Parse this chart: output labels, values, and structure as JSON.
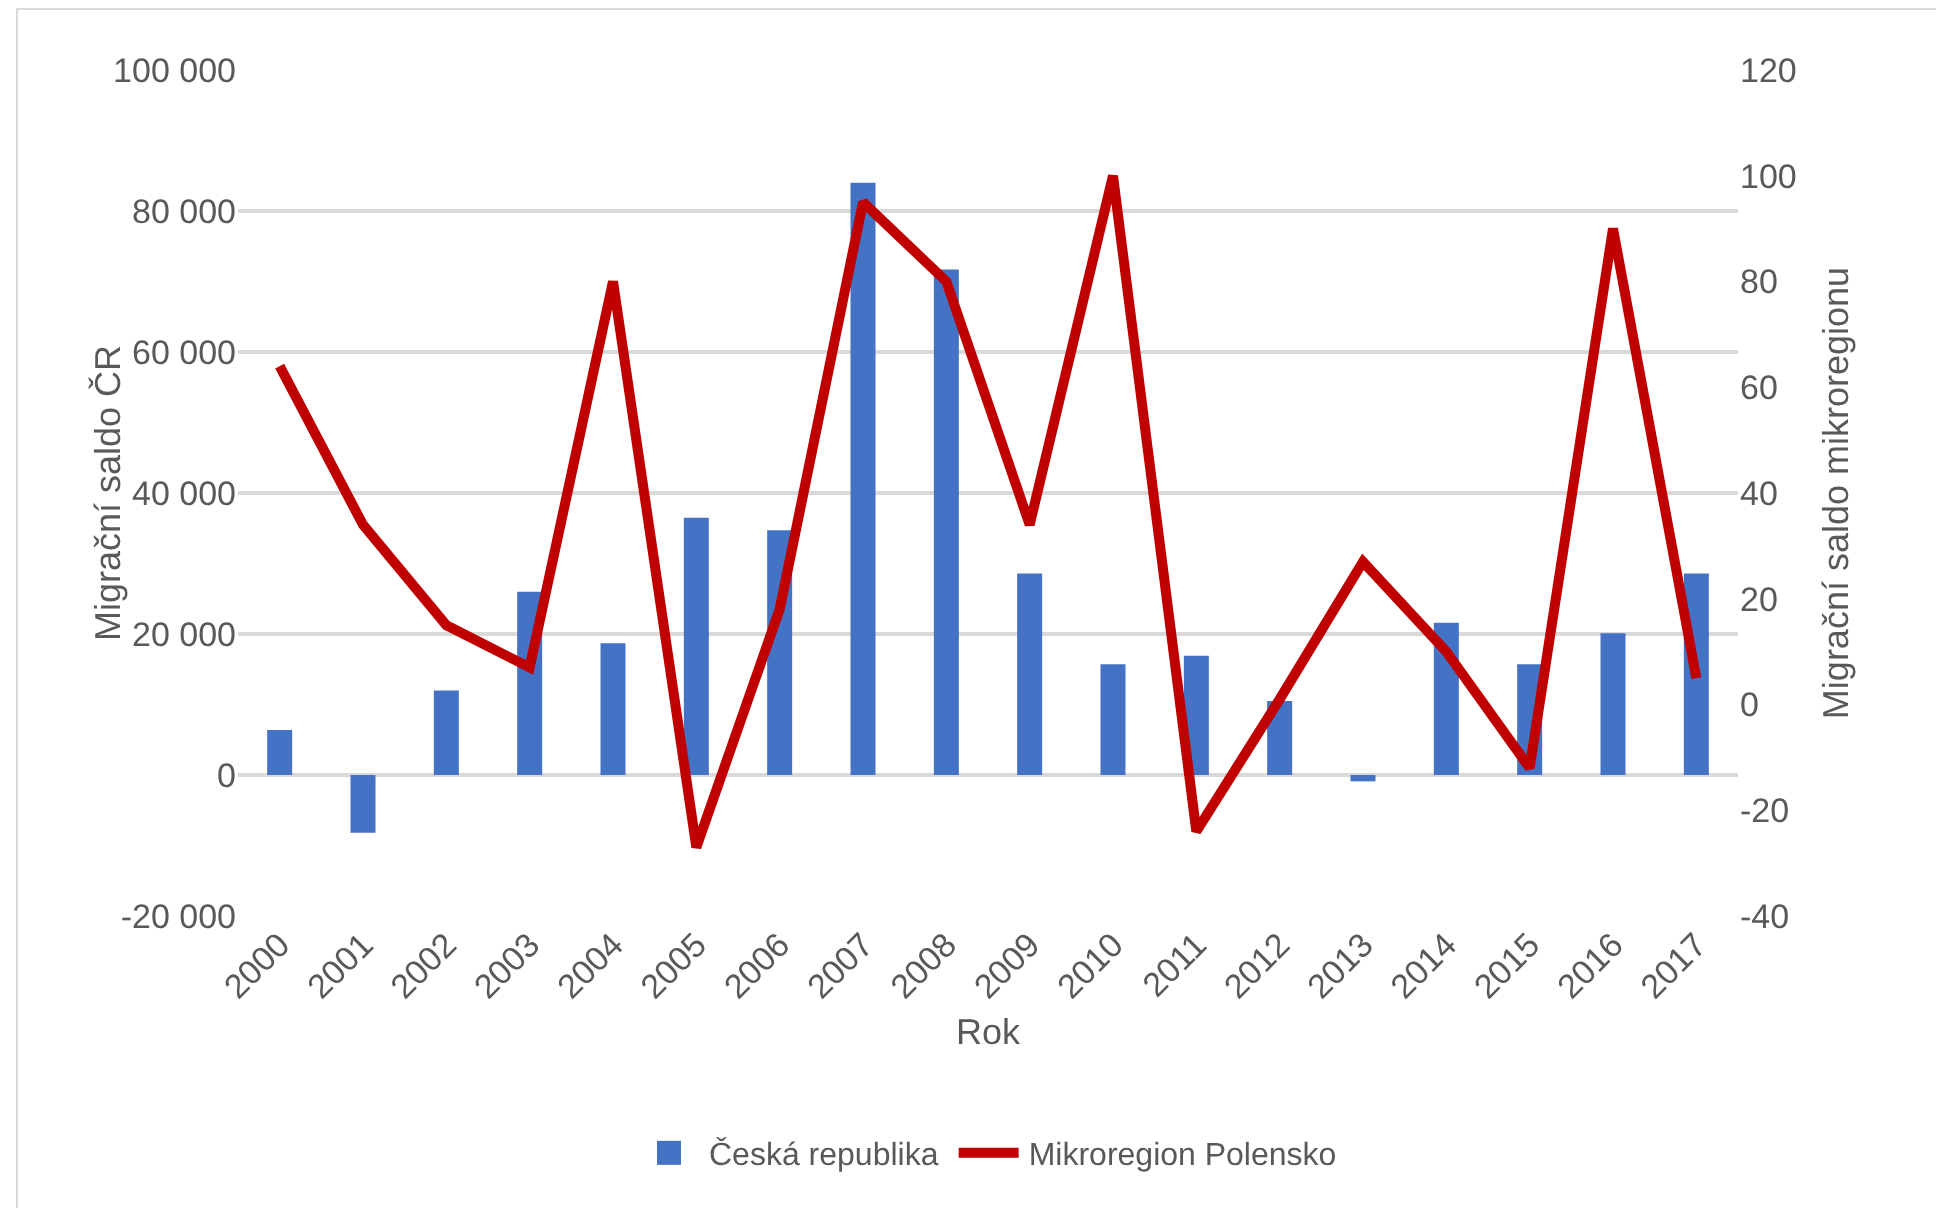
{
  "chart_data": {
    "type": "bar",
    "xlabel": "Rok",
    "ylabel": "Migrační saldo ČR",
    "y2label": "Migrační saldo mikroregionu",
    "categories": [
      "2000",
      "2001",
      "2002",
      "2003",
      "2004",
      "2005",
      "2006",
      "2007",
      "2008",
      "2009",
      "2010",
      "2011",
      "2012",
      "2013",
      "2014",
      "2015",
      "2016",
      "2017"
    ],
    "series": [
      {
        "name": "Česká republika",
        "color": "#4472c4",
        "values": [
          6400,
          -8200,
          12000,
          26000,
          18700,
          36500,
          34700,
          84000,
          71700,
          28600,
          15700,
          16900,
          10500,
          -900,
          21600,
          15700,
          20100,
          28600
        ]
      },
      {
        "name": "Mikroregion Polensko",
        "type": "line",
        "axis": "y2",
        "color": "#c00000",
        "values": [
          64,
          34,
          15,
          7,
          80,
          -27,
          18,
          95,
          80,
          34,
          100,
          -24,
          1,
          27,
          10,
          -12,
          90,
          5
        ]
      }
    ],
    "ylim": [
      -20000,
      100000
    ],
    "yticks": [
      {
        "value": -20000,
        "label": "-20 000"
      },
      0,
      {
        "value": 20000,
        "label": "20 000"
      },
      {
        "value": 40000,
        "label": "40 000"
      },
      {
        "value": 60000,
        "label": "60 000"
      },
      {
        "value": 80000,
        "label": "80 000"
      },
      {
        "value": 100000,
        "label": "100 000"
      }
    ],
    "y2lim": [
      -40,
      120
    ],
    "y2ticks": [
      -40,
      -20,
      0,
      20,
      40,
      60,
      80,
      100,
      120
    ],
    "grid": "y",
    "legend": "bottom",
    "marker": "none",
    "line_style": "solid"
  }
}
